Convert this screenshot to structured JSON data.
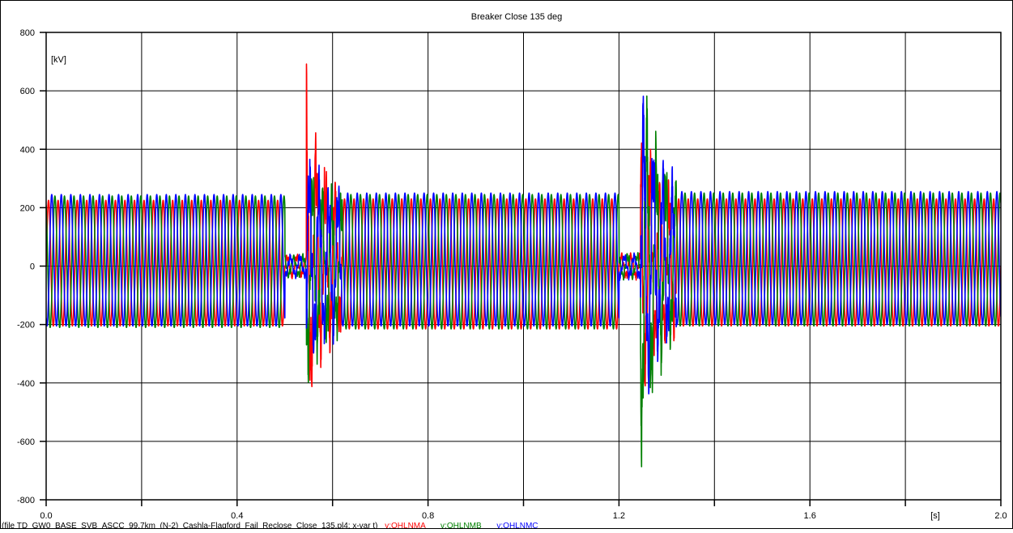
{
  "chart_data": {
    "type": "line",
    "title": "Breaker Close 135 deg",
    "xlabel": "",
    "xunit": "[s]",
    "yunit": "[kV]",
    "xlim": [
      0.0,
      2.0
    ],
    "ylim": [
      -800,
      800
    ],
    "x_ticks": [
      0.0,
      0.2,
      0.4,
      0.6,
      0.8,
      1.0,
      1.2,
      1.4,
      1.6,
      1.8,
      2.0
    ],
    "x_tick_labels": [
      "0.0",
      "",
      "0.4",
      "",
      "0.8",
      "",
      "1.2",
      "",
      "1.6",
      "",
      "2.0"
    ],
    "y_ticks": [
      -800,
      -600,
      -400,
      -200,
      0,
      200,
      400,
      600,
      800
    ],
    "y_tick_labels": [
      "-800",
      "-600",
      "-400",
      "-200",
      "0",
      "200",
      "400",
      "600",
      "800"
    ],
    "grid": true,
    "footer_file": "(file TD_GW0_BASE_SVB_ASCC_99.7km_(N-2)_Cashla-Flagford_Fail_Reclose_Close_135.pl4; x-var t)",
    "frequency_hz": 50,
    "series": [
      {
        "name": "v:OHLNMA",
        "color": "#ff0000",
        "phase_deg": 0,
        "segments": [
          {
            "t0": 0.0,
            "t1": 0.5,
            "amp_pos": 225,
            "amp_neg": 205
          },
          {
            "t0": 0.5,
            "t1": 0.545,
            "amp_pos": 40,
            "amp_neg": 40
          },
          {
            "t0": 0.545,
            "t1": 0.62,
            "amp_pos": 630,
            "amp_neg": 500
          },
          {
            "t0": 0.62,
            "t1": 1.2,
            "amp_pos": 230,
            "amp_neg": 215
          },
          {
            "t0": 1.2,
            "t1": 1.245,
            "amp_pos": 45,
            "amp_neg": 45
          },
          {
            "t0": 1.245,
            "t1": 1.32,
            "amp_pos": 520,
            "amp_neg": 480
          },
          {
            "t0": 1.32,
            "t1": 2.0,
            "amp_pos": 230,
            "amp_neg": 205
          }
        ]
      },
      {
        "name": "v:OHLNMB",
        "color": "#008000",
        "phase_deg": 120,
        "segments": [
          {
            "t0": 0.0,
            "t1": 0.5,
            "amp_pos": 240,
            "amp_neg": 210
          },
          {
            "t0": 0.5,
            "t1": 0.545,
            "amp_pos": 40,
            "amp_neg": 40
          },
          {
            "t0": 0.545,
            "t1": 0.62,
            "amp_pos": 400,
            "amp_neg": 390
          },
          {
            "t0": 0.62,
            "t1": 1.2,
            "amp_pos": 245,
            "amp_neg": 215
          },
          {
            "t0": 1.2,
            "t1": 1.245,
            "amp_pos": 45,
            "amp_neg": 45
          },
          {
            "t0": 1.245,
            "t1": 1.32,
            "amp_pos": 740,
            "amp_neg": 710
          },
          {
            "t0": 1.32,
            "t1": 2.0,
            "amp_pos": 250,
            "amp_neg": 205
          }
        ]
      },
      {
        "name": "v:OHLNMC",
        "color": "#0000ff",
        "phase_deg": 240,
        "segments": [
          {
            "t0": 0.0,
            "t1": 0.5,
            "amp_pos": 245,
            "amp_neg": 205
          },
          {
            "t0": 0.5,
            "t1": 0.545,
            "amp_pos": 40,
            "amp_neg": 40
          },
          {
            "t0": 0.545,
            "t1": 0.62,
            "amp_pos": 420,
            "amp_neg": 400
          },
          {
            "t0": 0.62,
            "t1": 1.2,
            "amp_pos": 250,
            "amp_neg": 205
          },
          {
            "t0": 1.2,
            "t1": 1.245,
            "amp_pos": 45,
            "amp_neg": 45
          },
          {
            "t0": 1.245,
            "t1": 1.32,
            "amp_pos": 700,
            "amp_neg": 560
          },
          {
            "t0": 1.32,
            "t1": 2.0,
            "amp_pos": 255,
            "amp_neg": 200
          }
        ]
      }
    ]
  }
}
